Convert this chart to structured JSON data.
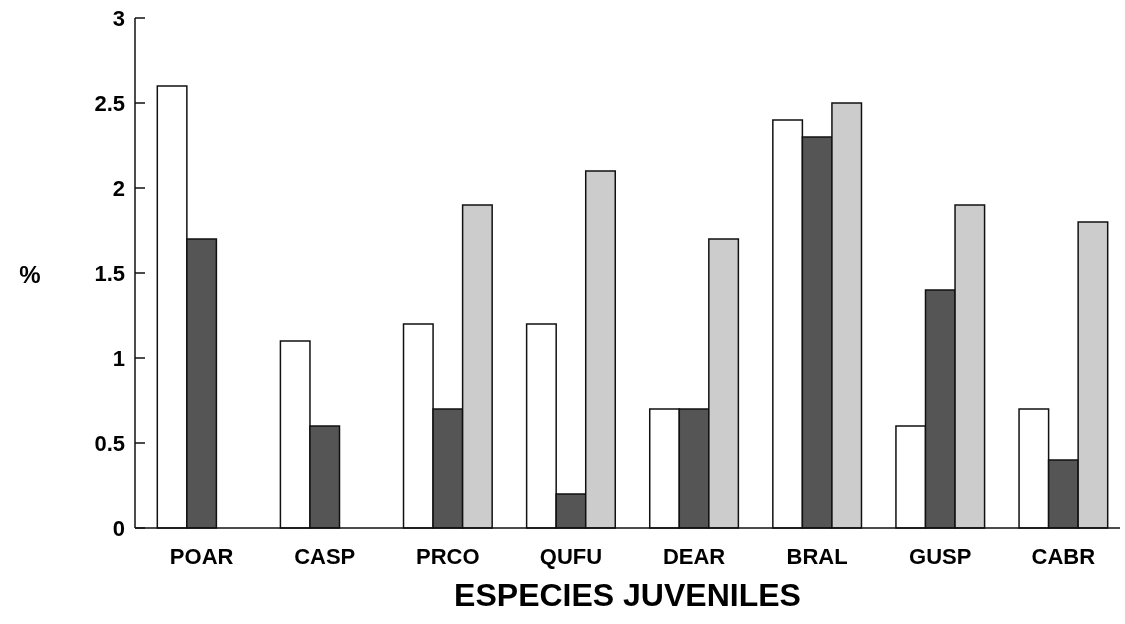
{
  "chart_data": {
    "type": "bar",
    "xlabel": "ESPECIES JUVENILES",
    "ylabel": "%",
    "categories": [
      "POAR",
      "CASP",
      "PRCO",
      "QUFU",
      "DEAR",
      "BRAL",
      "GUSP",
      "CABR"
    ],
    "series": [
      {
        "color": "#ffffff",
        "values": [
          2.6,
          1.1,
          1.2,
          1.2,
          0.7,
          2.4,
          0.6,
          0.7
        ]
      },
      {
        "color": "#555555",
        "values": [
          1.7,
          0.6,
          0.7,
          0.2,
          0.7,
          2.3,
          1.4,
          0.4
        ]
      },
      {
        "color": "#cccccc",
        "values": [
          null,
          null,
          1.9,
          2.1,
          1.7,
          2.5,
          1.9,
          1.8
        ]
      }
    ],
    "ylim": [
      0,
      3
    ],
    "yticks": [
      0,
      0.5,
      1,
      1.5,
      2,
      2.5,
      3
    ],
    "grid": false
  }
}
